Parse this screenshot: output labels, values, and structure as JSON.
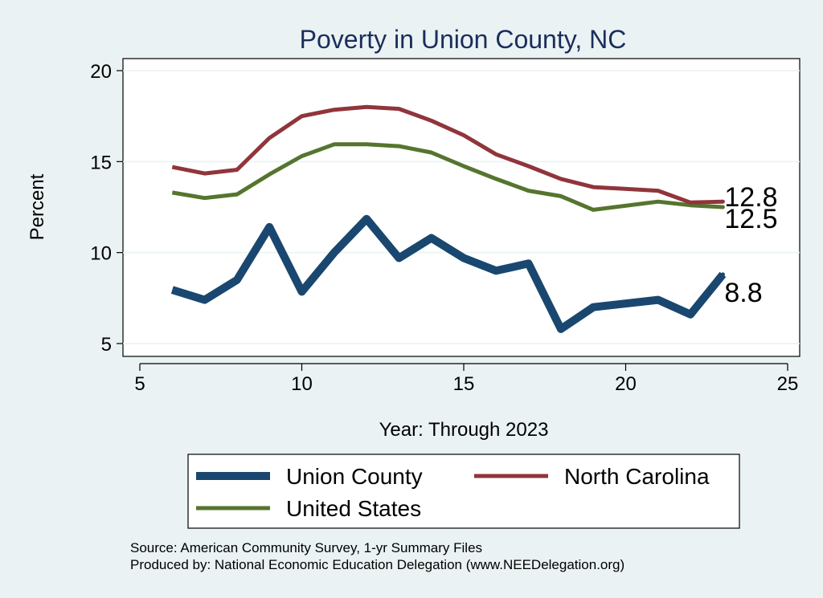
{
  "chart_data": {
    "type": "line",
    "title": "Poverty in Union County, NC",
    "xlabel": "Year: Through 2023",
    "ylabel": "Percent",
    "xlim": [
      5,
      25
    ],
    "ylim": [
      5,
      20
    ],
    "xticks": [
      5,
      10,
      15,
      20,
      25
    ],
    "yticks": [
      5,
      10,
      15,
      20
    ],
    "grid": true,
    "legend_position": "bottom",
    "series": [
      {
        "name": "Union County",
        "color": "#1a476f",
        "x": [
          6,
          7,
          8,
          9,
          10,
          11,
          12,
          13,
          14,
          15,
          16,
          17,
          18,
          19,
          21,
          22,
          23
        ],
        "y": [
          7.95,
          7.4,
          8.5,
          11.4,
          7.85,
          10.0,
          11.85,
          9.7,
          10.8,
          9.7,
          9.0,
          9.4,
          5.8,
          7.0,
          7.4,
          6.6,
          8.8
        ],
        "end_label": "8.8"
      },
      {
        "name": "North Carolina",
        "color": "#90353b",
        "x": [
          6,
          7,
          8,
          9,
          10,
          11,
          12,
          13,
          14,
          15,
          16,
          17,
          18,
          19,
          21,
          22,
          23
        ],
        "y": [
          14.7,
          14.35,
          14.55,
          16.3,
          17.5,
          17.85,
          18.0,
          17.9,
          17.25,
          16.45,
          15.4,
          14.75,
          14.05,
          13.6,
          13.4,
          12.75,
          12.8
        ],
        "end_label": "12.8"
      },
      {
        "name": "United States",
        "color": "#55752f",
        "x": [
          6,
          7,
          8,
          9,
          10,
          11,
          12,
          13,
          14,
          15,
          16,
          17,
          18,
          19,
          21,
          22,
          23
        ],
        "y": [
          13.3,
          13.0,
          13.2,
          14.3,
          15.3,
          15.95,
          15.95,
          15.85,
          15.5,
          14.75,
          14.05,
          13.4,
          13.1,
          12.35,
          12.8,
          12.6,
          12.5
        ],
        "end_label": "12.5"
      }
    ],
    "notes": [
      "Source: American Community Survey, 1-yr Summary Files",
      "Produced by: National Economic Education Delegation (www.NEEDelegation.org)"
    ]
  }
}
